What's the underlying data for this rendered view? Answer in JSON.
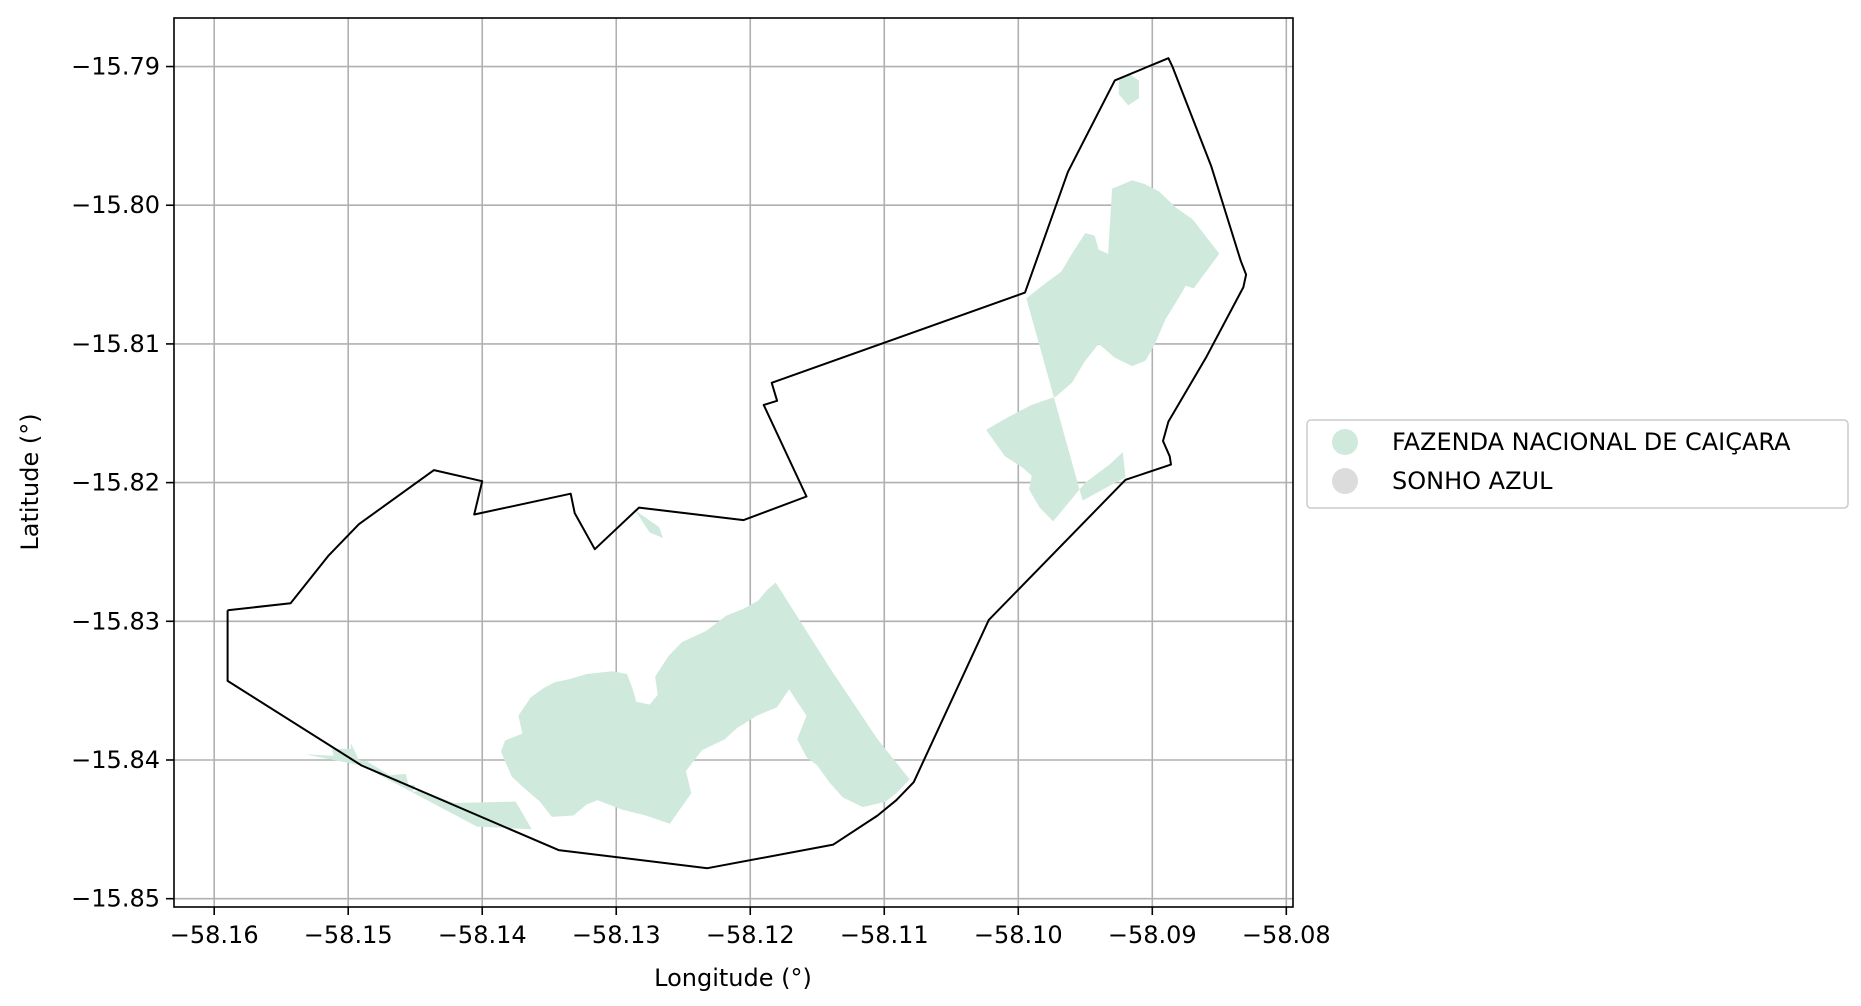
{
  "chart_data": {
    "type": "map",
    "xlabel": "Longitude (°)",
    "ylabel": "Latitude (°)",
    "xlim": [
      -58.163,
      -58.0795
    ],
    "ylim": [
      -15.8506,
      -15.7865
    ],
    "grid": true,
    "xticks": [
      -58.16,
      -58.15,
      -58.14,
      -58.13,
      -58.12,
      -58.11,
      -58.1,
      -58.09,
      -58.08
    ],
    "xtick_labels": [
      "−58.16",
      "−58.15",
      "−58.14",
      "−58.13",
      "−58.12",
      "−58.11",
      "−58.10",
      "−58.09",
      "−58.08"
    ],
    "yticks": [
      -15.79,
      -15.8,
      -15.81,
      -15.82,
      -15.83,
      -15.84,
      -15.85
    ],
    "ytick_labels": [
      "−15.79",
      "−15.80",
      "−15.81",
      "−15.82",
      "−15.83",
      "−15.84",
      "−15.85"
    ],
    "legend": {
      "position": "center-right outside",
      "entries": [
        {
          "label": "FAZENDA NACIONAL DE CAIÇARA",
          "color": "#cfeadd"
        },
        {
          "label": "SONHO AZUL",
          "color": "#dcdcdc"
        }
      ]
    },
    "boundary": {
      "color": "#000000",
      "coords": [
        [
          -58.159,
          -15.8292
        ],
        [
          -58.1543,
          -15.8287
        ],
        [
          -58.1515,
          -15.8253
        ],
        [
          -58.1492,
          -15.823
        ],
        [
          -58.1436,
          -15.8191
        ],
        [
          -58.14,
          -15.8199
        ],
        [
          -58.1406,
          -15.8223
        ],
        [
          -58.1334,
          -15.8208
        ],
        [
          -58.1331,
          -15.8222
        ],
        [
          -58.1316,
          -15.8248
        ],
        [
          -58.1283,
          -15.8218
        ],
        [
          -58.1205,
          -15.8227
        ],
        [
          -58.1158,
          -15.821
        ],
        [
          -58.119,
          -15.8144
        ],
        [
          -58.118,
          -15.8141
        ],
        [
          -58.1184,
          -15.8128
        ],
        [
          -58.0995,
          -15.8063
        ],
        [
          -58.0963,
          -15.7976
        ],
        [
          -58.0928,
          -15.791
        ],
        [
          -58.0888,
          -15.7894
        ],
        [
          -58.0885,
          -15.79
        ],
        [
          -58.0856,
          -15.7972
        ],
        [
          -58.0834,
          -15.804
        ],
        [
          -58.083,
          -15.805
        ],
        [
          -58.0832,
          -15.8059
        ],
        [
          -58.086,
          -15.811
        ],
        [
          -58.0888,
          -15.8156
        ],
        [
          -58.0892,
          -15.817
        ],
        [
          -58.0887,
          -15.8181
        ],
        [
          -58.0886,
          -15.8187
        ],
        [
          -58.092,
          -15.8198
        ],
        [
          -58.1022,
          -15.8299
        ],
        [
          -58.1078,
          -15.8416
        ],
        [
          -58.1091,
          -15.8429
        ],
        [
          -58.1105,
          -15.844
        ],
        [
          -58.1138,
          -15.8461
        ],
        [
          -58.1232,
          -15.8478
        ],
        [
          -58.1343,
          -15.8465
        ],
        [
          -58.149,
          -15.8404
        ],
        [
          -58.159,
          -15.8343
        ],
        [
          -58.159,
          -15.8292
        ]
      ]
    },
    "fazenda_regions": [
      [
        [
          -58.1532,
          -15.8396
        ],
        [
          -58.1511,
          -15.8397
        ],
        [
          -58.1512,
          -15.8392
        ],
        [
          -58.1498,
          -15.8392
        ],
        [
          -58.1498,
          -15.8388
        ],
        [
          -58.1492,
          -15.84
        ],
        [
          -58.1486,
          -15.8401
        ],
        [
          -58.1469,
          -15.8411
        ],
        [
          -58.1457,
          -15.841
        ],
        [
          -58.1455,
          -15.8418
        ],
        [
          -58.145,
          -15.8418
        ],
        [
          -58.1452,
          -15.8423
        ],
        [
          -58.1445,
          -15.8422
        ],
        [
          -58.1421,
          -15.8431
        ],
        [
          -58.1375,
          -15.843
        ],
        [
          -58.1363,
          -15.845
        ],
        [
          -58.1404,
          -15.8448
        ],
        [
          -58.149,
          -15.8404
        ],
        [
          -58.1532,
          -15.8396
        ]
      ],
      [
        [
          -58.1383,
          -15.8386
        ],
        [
          -58.137,
          -15.8381
        ],
        [
          -58.1373,
          -15.8368
        ],
        [
          -58.1364,
          -15.8355
        ],
        [
          -58.1354,
          -15.8348
        ],
        [
          -58.1346,
          -15.8344
        ],
        [
          -58.1336,
          -15.8342
        ],
        [
          -58.1322,
          -15.8338
        ],
        [
          -58.1303,
          -15.8336
        ],
        [
          -58.1292,
          -15.8338
        ],
        [
          -58.1288,
          -15.8348
        ],
        [
          -58.1285,
          -15.8358
        ],
        [
          -58.1275,
          -15.836
        ],
        [
          -58.1269,
          -15.8353
        ],
        [
          -58.1271,
          -15.834
        ],
        [
          -58.1261,
          -15.8325
        ],
        [
          -58.1251,
          -15.8315
        ],
        [
          -58.1233,
          -15.8307
        ],
        [
          -58.1218,
          -15.8296
        ],
        [
          -58.1205,
          -15.8291
        ],
        [
          -58.1194,
          -15.8285
        ],
        [
          -58.1188,
          -15.8278
        ],
        [
          -58.1181,
          -15.8272
        ],
        [
          -58.1141,
          -15.8333
        ],
        [
          -58.1105,
          -15.8385
        ],
        [
          -58.1081,
          -15.8414
        ],
        [
          -58.1091,
          -15.8424
        ],
        [
          -58.1099,
          -15.843
        ],
        [
          -58.1116,
          -15.8434
        ],
        [
          -58.1131,
          -15.8427
        ],
        [
          -58.1141,
          -15.8416
        ],
        [
          -58.115,
          -15.8404
        ],
        [
          -58.1158,
          -15.8398
        ],
        [
          -58.1165,
          -15.8385
        ],
        [
          -58.1158,
          -15.8368
        ],
        [
          -58.1165,
          -15.8358
        ],
        [
          -58.1171,
          -15.8349
        ],
        [
          -58.118,
          -15.8362
        ],
        [
          -58.1195,
          -15.8368
        ],
        [
          -58.121,
          -15.8377
        ],
        [
          -58.1219,
          -15.8385
        ],
        [
          -58.1236,
          -15.8393
        ],
        [
          -58.1248,
          -15.8408
        ],
        [
          -58.1244,
          -15.8424
        ],
        [
          -58.126,
          -15.8446
        ],
        [
          -58.1278,
          -15.844
        ],
        [
          -58.1295,
          -15.8436
        ],
        [
          -58.1314,
          -15.8429
        ],
        [
          -58.1322,
          -15.8432
        ],
        [
          -58.1332,
          -15.844
        ],
        [
          -58.1348,
          -15.8441
        ],
        [
          -58.1357,
          -15.843
        ],
        [
          -58.1369,
          -15.842
        ],
        [
          -58.1378,
          -15.8412
        ],
        [
          -58.1386,
          -15.8394
        ],
        [
          -58.1383,
          -15.8386
        ]
      ],
      [
        [
          -58.1286,
          -15.822
        ],
        [
          -58.1275,
          -15.8236
        ],
        [
          -58.1265,
          -15.824
        ],
        [
          -58.1268,
          -15.8232
        ],
        [
          -58.128,
          -15.8224
        ],
        [
          -58.1286,
          -15.822
        ]
      ],
      [
        [
          -58.0994,
          -15.8067
        ],
        [
          -58.0978,
          -15.8055
        ],
        [
          -58.0968,
          -15.8048
        ],
        [
          -58.096,
          -15.8035
        ],
        [
          -58.095,
          -15.802
        ],
        [
          -58.0943,
          -15.8022
        ],
        [
          -58.094,
          -15.8032
        ],
        [
          -58.0933,
          -15.8035
        ],
        [
          -58.093,
          -15.7988
        ],
        [
          -58.0915,
          -15.7982
        ],
        [
          -58.0905,
          -15.7985
        ],
        [
          -58.0895,
          -15.799
        ],
        [
          -58.0882,
          -15.8002
        ],
        [
          -58.087,
          -15.801
        ],
        [
          -58.0858,
          -15.8025
        ],
        [
          -58.085,
          -15.8035
        ],
        [
          -58.0863,
          -15.8052
        ],
        [
          -58.0869,
          -15.806
        ],
        [
          -58.0875,
          -15.8058
        ],
        [
          -58.0881,
          -15.8068
        ],
        [
          -58.089,
          -15.8082
        ],
        [
          -58.0898,
          -15.81
        ],
        [
          -58.0905,
          -15.8112
        ],
        [
          -58.0915,
          -15.8116
        ],
        [
          -58.0928,
          -15.811
        ],
        [
          -58.094,
          -15.81
        ],
        [
          -58.095,
          -15.8112
        ],
        [
          -58.096,
          -15.8128
        ],
        [
          -58.0972,
          -15.8138
        ],
        [
          -58.099,
          -15.8144
        ],
        [
          -58.1008,
          -15.8153
        ],
        [
          -58.1024,
          -15.8162
        ],
        [
          -58.101,
          -15.8181
        ],
        [
          -58.0997,
          -15.8189
        ],
        [
          -58.099,
          -15.8195
        ],
        [
          -58.0992,
          -15.8205
        ],
        [
          -58.0984,
          -15.8218
        ],
        [
          -58.0974,
          -15.8228
        ],
        [
          -58.0962,
          -15.8214
        ],
        [
          -58.095,
          -15.82
        ],
        [
          -58.0932,
          -15.8187
        ],
        [
          -58.0922,
          -15.8178
        ],
        [
          -58.092,
          -15.8196
        ],
        [
          -58.0952,
          -15.8213
        ],
        [
          -58.0994,
          -15.8067
        ]
      ],
      [
        [
          -58.0925,
          -15.791
        ],
        [
          -58.0918,
          -15.7905
        ],
        [
          -58.091,
          -15.791
        ],
        [
          -58.091,
          -15.7923
        ],
        [
          -58.0918,
          -15.7928
        ],
        [
          -58.0925,
          -15.792
        ],
        [
          -58.0925,
          -15.791
        ]
      ]
    ]
  }
}
